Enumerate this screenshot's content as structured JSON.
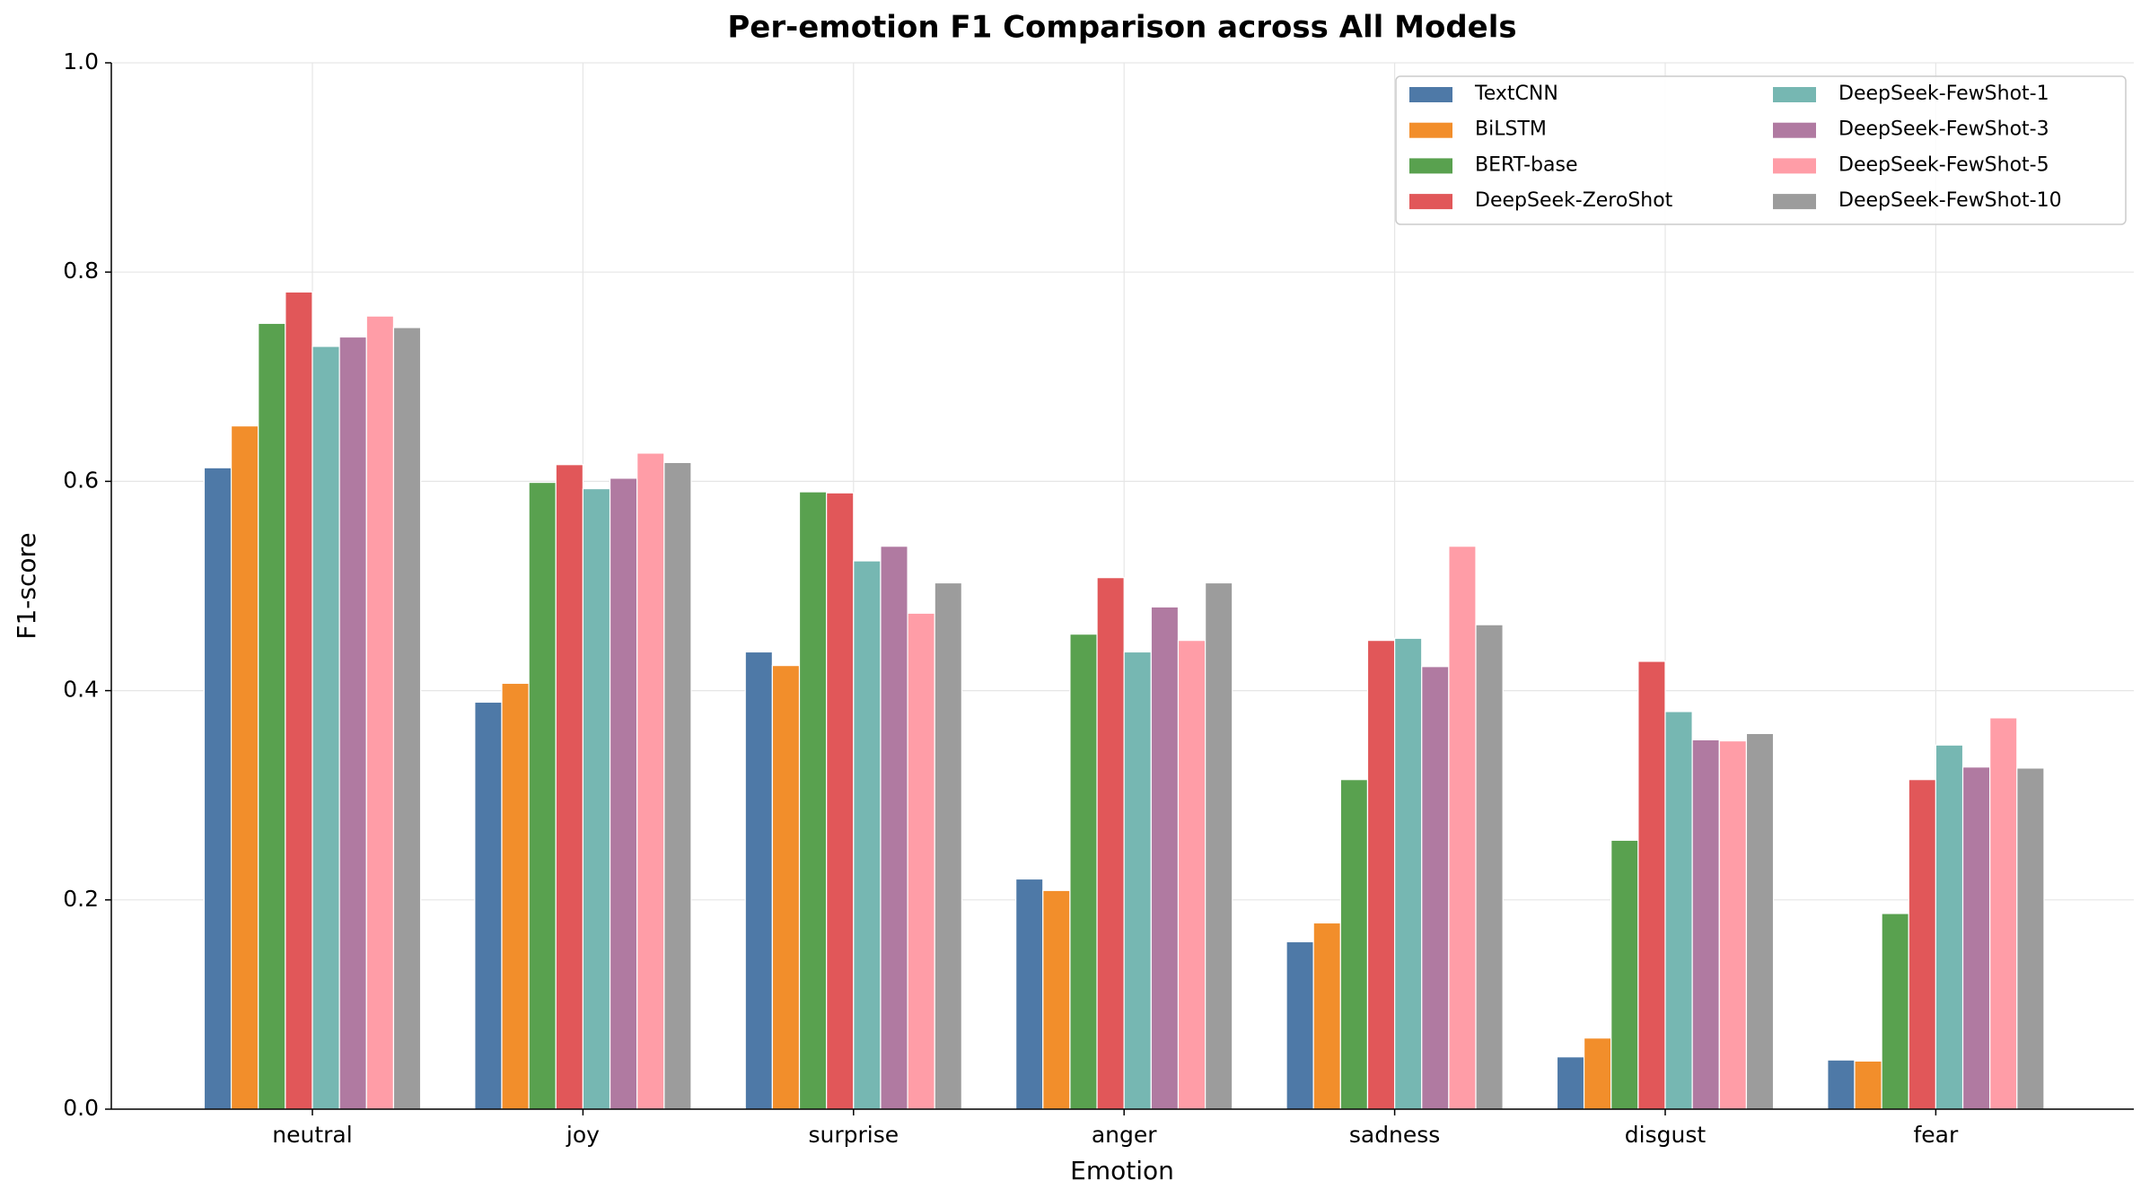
{
  "chart_data": {
    "type": "bar",
    "title": "Per-emotion F1 Comparison across All Models",
    "x_label": "Emotion",
    "y_label": "F1-score",
    "categories": [
      "neutral",
      "joy",
      "surprise",
      "anger",
      "sadness",
      "disgust",
      "fear"
    ],
    "series": [
      {
        "name": "TextCNN",
        "color": "#4e79a7",
        "values": [
          0.613,
          0.389,
          0.437,
          0.22,
          0.16,
          0.05,
          0.047
        ]
      },
      {
        "name": "BiLSTM",
        "color": "#f28e2b",
        "values": [
          0.653,
          0.407,
          0.424,
          0.209,
          0.178,
          0.068,
          0.046
        ]
      },
      {
        "name": "BERT-base",
        "color": "#59a14f",
        "values": [
          0.751,
          0.599,
          0.59,
          0.454,
          0.315,
          0.257,
          0.187
        ]
      },
      {
        "name": "DeepSeek-ZeroShot",
        "color": "#e15759",
        "values": [
          0.781,
          0.616,
          0.589,
          0.508,
          0.448,
          0.428,
          0.315
        ]
      },
      {
        "name": "DeepSeek-FewShot-1",
        "color": "#76b7b2",
        "values": [
          0.729,
          0.593,
          0.524,
          0.437,
          0.45,
          0.38,
          0.348
        ]
      },
      {
        "name": "DeepSeek-FewShot-3",
        "color": "#b07aa1",
        "values": [
          0.738,
          0.603,
          0.538,
          0.48,
          0.423,
          0.353,
          0.327
        ]
      },
      {
        "name": "DeepSeek-FewShot-5",
        "color": "#ff9da7",
        "values": [
          0.758,
          0.627,
          0.474,
          0.448,
          0.538,
          0.352,
          0.374
        ]
      },
      {
        "name": "DeepSeek-FewShot-10",
        "color": "#9c9c9c",
        "values": [
          0.747,
          0.618,
          0.503,
          0.503,
          0.463,
          0.359,
          0.326
        ]
      }
    ],
    "ylim": [
      0,
      1
    ],
    "yticks": [
      {
        "value": 0,
        "label": "0.0"
      },
      0.2,
      0.4,
      0.6,
      0.8,
      {
        "value": 1,
        "label": "1.0"
      }
    ],
    "grid": true,
    "legend": "upper right"
  }
}
